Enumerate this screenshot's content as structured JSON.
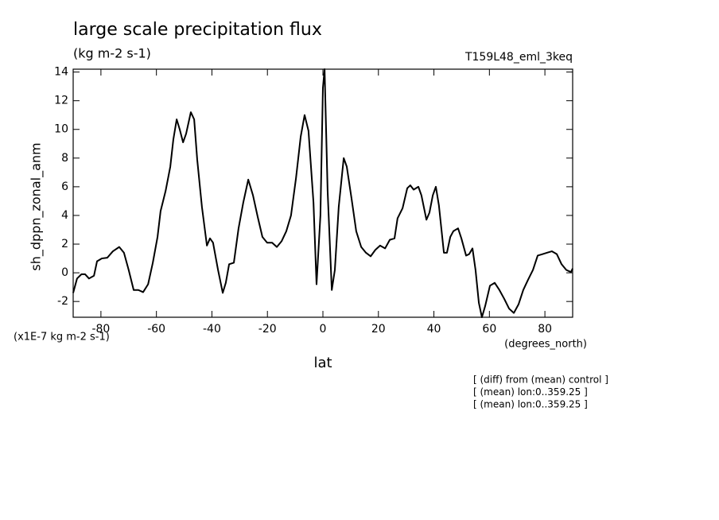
{
  "chart_data": {
    "type": "line",
    "title": "large scale precipitation flux",
    "subtitle": "(kg m-2 s-1)",
    "run_label": "T159L48_eml_3keq",
    "y_label": "sh_dppn_zonal_anm",
    "y_units": "(x1E-7 kg m-2 s-1)",
    "x_label": "lat",
    "x_units": "(degrees_north)",
    "notes": [
      "[ (diff) from (mean) control ]",
      "[ (mean) lon:0..359.25 ]",
      "[ (mean) lon:0..359.25 ]"
    ],
    "color": "#000000",
    "xlim": [
      -90,
      90
    ],
    "ylim": [
      -3.1,
      14.2
    ],
    "xticks": [
      -80,
      -60,
      -40,
      -20,
      0,
      20,
      40,
      60,
      80
    ],
    "yticks": [
      -2,
      0,
      2,
      4,
      6,
      8,
      10,
      12,
      14
    ],
    "x": [
      -90,
      -88.6,
      -87,
      -85.7,
      -84.3,
      -82.5,
      -81.4,
      -79.7,
      -77.7,
      -75.7,
      -73.4,
      -71.7,
      -70,
      -68.2,
      -66.5,
      -64.8,
      -63,
      -61.3,
      -59.6,
      -58.5,
      -56.7,
      -55,
      -53.9,
      -52.7,
      -51.6,
      -50.4,
      -49.3,
      -47.6,
      -46.4,
      -45.3,
      -43.6,
      -41.8,
      -40.7,
      -39.6,
      -37.8,
      -36.1,
      -35,
      -33.8,
      -32.1,
      -30.4,
      -28.7,
      -26.9,
      -25.2,
      -23.5,
      -21.8,
      -20.1,
      -18.3,
      -16.6,
      -14.9,
      -13.2,
      -11.5,
      -9.7,
      -8,
      -6.6,
      -5.2,
      -3.4,
      -2.3,
      -0.9,
      0,
      0.6,
      1.7,
      3.2,
      4.3,
      5.7,
      7.5,
      8.6,
      10.3,
      12,
      13.8,
      15.5,
      17.2,
      18.9,
      20.6,
      22.4,
      24.1,
      25.8,
      26.9,
      28.7,
      30.4,
      31.5,
      32.7,
      34.4,
      35.5,
      37.3,
      38.4,
      39.6,
      40.7,
      41.8,
      43.6,
      44.7,
      45.9,
      47,
      48.7,
      49.9,
      51.6,
      52.7,
      53.9,
      55,
      56.2,
      57.3,
      58.5,
      60.2,
      61.9,
      63.6,
      65.3,
      67.1,
      68.8,
      70.5,
      72.2,
      73.9,
      75.7,
      77.4,
      79.1,
      80.8,
      82.5,
      84.3,
      86,
      87.7,
      89.4,
      90
    ],
    "values": [
      -1.4,
      -0.4,
      -0.1,
      -0.1,
      -0.4,
      -0.2,
      0.8,
      1.0,
      1.05,
      1.5,
      1.8,
      1.4,
      0.2,
      -1.2,
      -1.2,
      -1.35,
      -0.8,
      0.7,
      2.5,
      4.3,
      5.7,
      7.4,
      9.3,
      10.7,
      10,
      9.1,
      9.7,
      11.2,
      10.7,
      7.9,
      4.6,
      1.9,
      2.4,
      2.1,
      0.2,
      -1.4,
      -0.7,
      0.6,
      0.7,
      3.1,
      4.9,
      6.5,
      5.4,
      3.9,
      2.5,
      2.1,
      2.1,
      1.8,
      2.2,
      2.9,
      4.0,
      6.6,
      9.5,
      11,
      9.9,
      4.9,
      -0.8,
      4.0,
      12.9,
      14.2,
      5.7,
      -1.2,
      0.2,
      4.6,
      8.0,
      7.4,
      5.2,
      2.9,
      1.8,
      1.4,
      1.15,
      1.6,
      1.9,
      1.7,
      2.3,
      2.4,
      3.8,
      4.5,
      5.9,
      6.1,
      5.8,
      6.0,
      5.4,
      3.7,
      4.2,
      5.4,
      6.0,
      4.7,
      1.4,
      1.4,
      2.5,
      2.9,
      3.1,
      2.4,
      1.2,
      1.3,
      1.7,
      0.2,
      -2.1,
      -3.1,
      -2.3,
      -0.9,
      -0.7,
      -1.2,
      -1.8,
      -2.5,
      -2.8,
      -2.2,
      -1.2,
      -0.5,
      0.2,
      1.2,
      1.3,
      1.4,
      1.5,
      1.3,
      0.6,
      0.2,
      0.05,
      0.3
    ]
  }
}
